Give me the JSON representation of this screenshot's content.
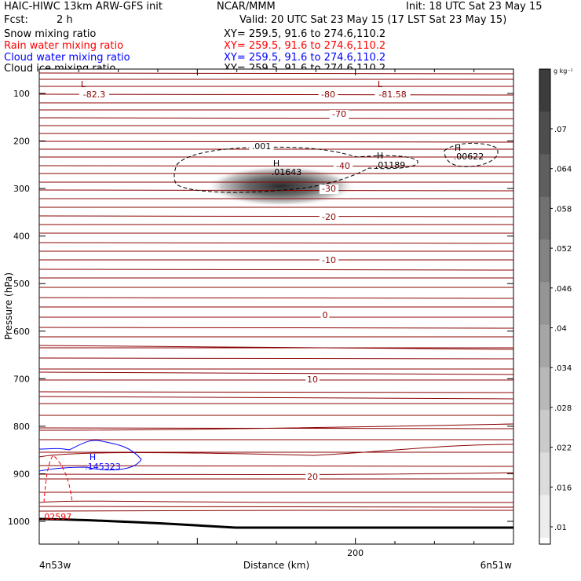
{
  "header": {
    "model": "HAIC-HIWC 13km ARW-GFS init",
    "org": "NCAR/MMM",
    "init": "Init: 18 UTC Sat 23 May 15",
    "fcst_label": "Fcst:",
    "fcst_value": "2 h",
    "valid": "Valid: 20 UTC Sat 23 May 15 (17 LST Sat 23 May 15)",
    "fields": [
      {
        "name": "Snow mixing ratio",
        "xy": "XY= 259.5, 91.6 to 274.6,110.2",
        "color": "#000000"
      },
      {
        "name": "Rain water mixing ratio",
        "xy": "XY= 259.5, 91.6 to 274.6,110.2",
        "color": "#ff0000"
      },
      {
        "name": "Cloud water mixing ratio",
        "xy": "XY= 259.5, 91.6 to 274.6,110.2",
        "color": "#0000ff"
      },
      {
        "name": "Cloud ice mixing ratio",
        "xy": "XY= 259.5, 91.6 to 274.6,110.2",
        "color": "#000000"
      }
    ]
  },
  "chart_data": {
    "type": "contour",
    "ylabel": "Pressure (hPa)",
    "xlabel": "Distance (km)",
    "x_left_label": "4n53w",
    "x_right_label": "6n51w",
    "xlim": [
      0,
      300
    ],
    "ylim": [
      1050,
      50
    ],
    "x_ticks": [
      200
    ],
    "y_ticks": [
      100,
      200,
      300,
      400,
      500,
      600,
      700,
      800,
      900,
      1000
    ],
    "colorbar": {
      "unit": "g kg⁻¹",
      "labels": [
        ".07",
        ".064",
        ".058",
        ".052",
        ".046",
        ".04",
        ".034",
        ".028",
        ".022",
        ".016",
        ".01"
      ]
    },
    "temperature_contour_labels": [
      {
        "text": "-82.3",
        "x": 30,
        "p": 120
      },
      {
        "text": "-80",
        "x": 180,
        "p": 120
      },
      {
        "text": "-81.58",
        "x": 222,
        "p": 120
      },
      {
        "text": "-70",
        "x": 190,
        "p": 163
      },
      {
        "text": "-40",
        "x": 190,
        "p": 255
      },
      {
        "text": "-30",
        "x": 182,
        "p": 305
      },
      {
        "text": "-20",
        "x": 182,
        "p": 360
      },
      {
        "text": "-10",
        "x": 182,
        "p": 455
      },
      {
        "text": "0",
        "x": 182,
        "p": 570
      },
      {
        "text": "10",
        "x": 172,
        "p": 705
      },
      {
        "text": "20",
        "x": 172,
        "p": 905
      }
    ],
    "extrema_labels": [
      {
        "type": "L",
        "value": "",
        "x": 30,
        "p": 100
      },
      {
        "type": "L",
        "value": "",
        "x": 222,
        "p": 100
      },
      {
        "type": "H",
        "value": ".01643",
        "x": 150,
        "p": 245,
        "series": "Cloud ice mixing ratio"
      },
      {
        "type": "H",
        "value": ".01189",
        "x": 222,
        "p": 237,
        "series": "Snow mixing ratio"
      },
      {
        "type": "H",
        "value": ".00622",
        "x": 268,
        "p": 220,
        "series": "Snow mixing ratio"
      },
      {
        "type": "H",
        "value": ".145323",
        "x": 36,
        "p": 885,
        "series": "Cloud water mixing ratio"
      },
      {
        "type": "",
        "value": ".02597",
        "x": 6,
        "p": 985,
        "series": "Rain water mixing ratio"
      }
    ],
    "snow_contour_label": ".001",
    "cloud_ice_max": {
      "value": 0.01643,
      "x": 150,
      "p": 300
    }
  }
}
